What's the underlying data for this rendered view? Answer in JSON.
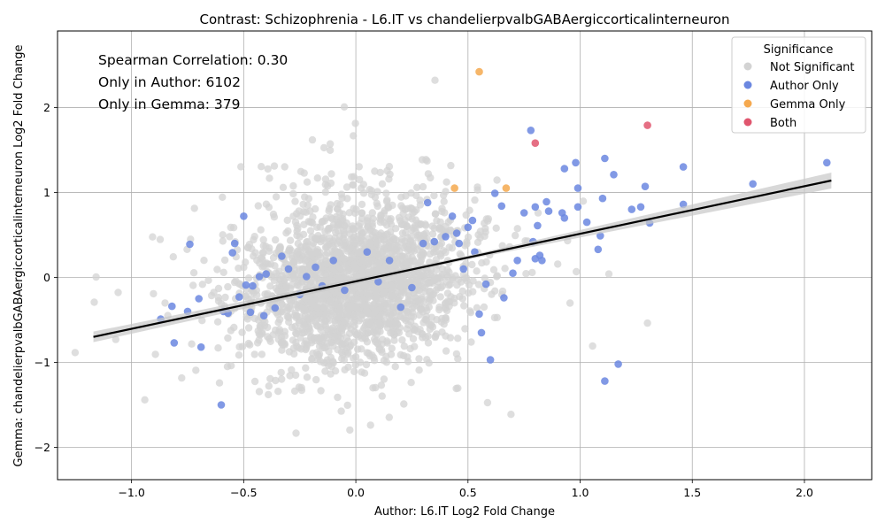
{
  "chart_data": {
    "type": "scatter",
    "title": "Contrast: Schizophrenia - L6.IT vs chandelierpvalbGABAergiccorticalinterneuron",
    "xlabel": "Author: L6.IT Log2 Fold Change",
    "ylabel": "Gemma: chandelierpvalbGABAergiccorticalinterneuron Log2 Fold Change",
    "xlim": [
      -1.33,
      2.3
    ],
    "ylim": [
      -2.38,
      2.9
    ],
    "xticks": [
      -1.0,
      -0.5,
      0.0,
      0.5,
      1.0,
      1.5,
      2.0
    ],
    "xtick_labels": [
      "−1.0",
      "−0.5",
      "0.0",
      "0.5",
      "1.0",
      "1.5",
      "2.0"
    ],
    "yticks": [
      -2,
      -1,
      0,
      1,
      2
    ],
    "ytick_labels": [
      "−2",
      "−1",
      "0",
      "1",
      "2"
    ],
    "grid": true,
    "legend": {
      "title": "Significance",
      "placement": "top-right",
      "entries": [
        "Not Significant",
        "Author Only",
        "Gemma Only",
        "Both"
      ]
    },
    "annotations": [
      "Spearman Correlation: 0.30",
      "Only in Author: 6102",
      "Only in Gemma: 379"
    ],
    "colors": {
      "not_significant": "#d3d3d3",
      "author_only": "#6b87e0",
      "gemma_only": "#f5a94f",
      "both": "#e0566e",
      "regression": "#000000",
      "band": "#c8c8c8"
    },
    "regression": {
      "x": [
        -1.17,
        2.12
      ],
      "y": [
        -0.7,
        1.14
      ]
    },
    "background_cloud": {
      "center": [
        0.0,
        -0.05
      ],
      "spread": [
        0.24,
        0.45
      ],
      "slope": 0.35,
      "count": 2200
    },
    "series": [
      {
        "name": "Author Only",
        "x": [
          -0.87,
          -0.82,
          -0.81,
          -0.74,
          -0.75,
          -0.7,
          -0.69,
          -0.6,
          -0.59,
          -0.57,
          -0.55,
          -0.54,
          -0.52,
          -0.5,
          -0.49,
          -0.47,
          -0.46,
          -0.43,
          -0.41,
          -0.4,
          -0.36,
          -0.33,
          -0.3,
          -0.25,
          -0.22,
          -0.18,
          -0.15,
          -0.1,
          -0.05,
          0.05,
          0.1,
          0.15,
          0.2,
          0.25,
          0.3,
          0.32,
          0.35,
          0.4,
          0.43,
          0.45,
          0.46,
          0.48,
          0.5,
          0.52,
          0.53,
          0.55,
          0.56,
          0.58,
          0.6,
          0.62,
          0.65,
          0.66,
          0.7,
          0.72,
          0.75,
          0.78,
          0.79,
          0.8,
          0.8,
          0.81,
          0.82,
          0.83,
          0.85,
          0.86,
          0.92,
          0.93,
          0.93,
          0.98,
          0.99,
          0.99,
          1.03,
          1.08,
          1.09,
          1.1,
          1.11,
          1.11,
          1.15,
          1.17,
          1.23,
          1.27,
          1.29,
          1.31,
          1.46,
          1.46,
          1.77,
          2.1
        ],
        "y": [
          -0.49,
          -0.34,
          -0.77,
          0.39,
          -0.4,
          -0.25,
          -0.82,
          -1.5,
          -0.4,
          -0.42,
          0.29,
          0.4,
          -0.23,
          0.72,
          -0.09,
          -0.41,
          -0.1,
          0.01,
          -0.45,
          0.04,
          -0.36,
          0.25,
          0.1,
          -0.2,
          0.01,
          0.12,
          -0.1,
          0.2,
          -0.15,
          0.3,
          -0.05,
          0.2,
          -0.35,
          -0.12,
          0.4,
          0.88,
          0.42,
          0.48,
          0.72,
          0.52,
          0.4,
          0.1,
          0.59,
          0.67,
          0.3,
          -0.43,
          -0.65,
          -0.08,
          -0.97,
          0.99,
          0.84,
          -0.24,
          0.05,
          0.2,
          0.76,
          1.73,
          0.42,
          0.22,
          0.83,
          0.61,
          0.26,
          0.2,
          0.89,
          0.78,
          0.76,
          1.28,
          0.7,
          1.35,
          1.05,
          0.83,
          0.65,
          0.33,
          0.49,
          0.93,
          1.4,
          -1.22,
          1.21,
          -1.02,
          0.8,
          0.83,
          1.07,
          0.64,
          1.3,
          0.86,
          1.1,
          1.35
        ]
      },
      {
        "name": "Gemma Only",
        "x": [
          0.55,
          0.44,
          0.67
        ],
        "y": [
          2.42,
          1.05,
          1.05
        ]
      },
      {
        "name": "Both",
        "x": [
          1.3,
          0.8
        ],
        "y": [
          1.79,
          1.58
        ]
      }
    ]
  }
}
